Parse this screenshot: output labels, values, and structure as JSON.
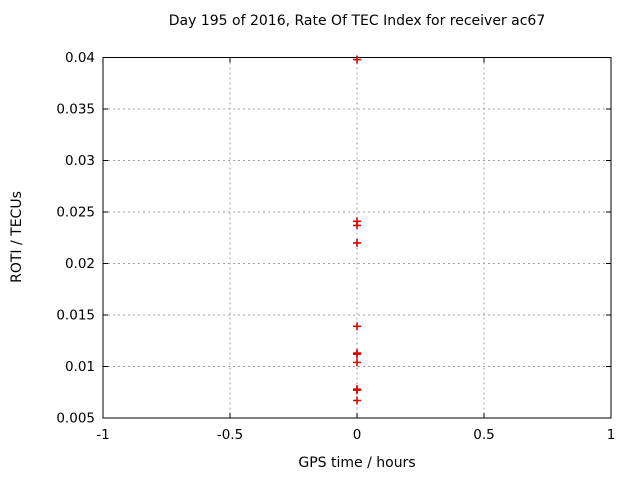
{
  "chart_data": {
    "type": "scatter",
    "title": "Day 195 of 2016, Rate Of TEC Index for receiver ac67",
    "xlabel": "GPS time / hours",
    "ylabel": "ROTI / TECUs",
    "xlim": [
      -1,
      1
    ],
    "ylim": [
      0.005,
      0.04
    ],
    "xticks": [
      {
        "v": -1,
        "label": "-1"
      },
      {
        "v": -0.5,
        "label": "-0.5"
      },
      {
        "v": 0,
        "label": "0"
      },
      {
        "v": 0.5,
        "label": "0.5"
      },
      {
        "v": 1,
        "label": "1"
      }
    ],
    "yticks": [
      {
        "v": 0.005,
        "label": "0.005"
      },
      {
        "v": 0.01,
        "label": "0.01"
      },
      {
        "v": 0.015,
        "label": "0.015"
      },
      {
        "v": 0.02,
        "label": "0.02"
      },
      {
        "v": 0.025,
        "label": "0.025"
      },
      {
        "v": 0.03,
        "label": "0.03"
      },
      {
        "v": 0.035,
        "label": "0.035"
      },
      {
        "v": 0.04,
        "label": "0.04"
      }
    ],
    "grid": true,
    "legend": "none",
    "marker": "plus",
    "colors": {
      "marker": "#dd0000",
      "grid": "#a0a0a0",
      "axis": "#000000",
      "background": "#ffffff"
    },
    "series": [
      {
        "name": "ROTI",
        "points": [
          [
            0,
            0.0398
          ],
          [
            0,
            0.0241
          ],
          [
            0,
            0.0237
          ],
          [
            0,
            0.022
          ],
          [
            0,
            0.0139
          ],
          [
            0,
            0.0113
          ],
          [
            0,
            0.0112
          ],
          [
            0,
            0.0104
          ],
          [
            0,
            0.0078
          ],
          [
            0,
            0.0077
          ],
          [
            0,
            0.0067
          ]
        ]
      }
    ]
  }
}
